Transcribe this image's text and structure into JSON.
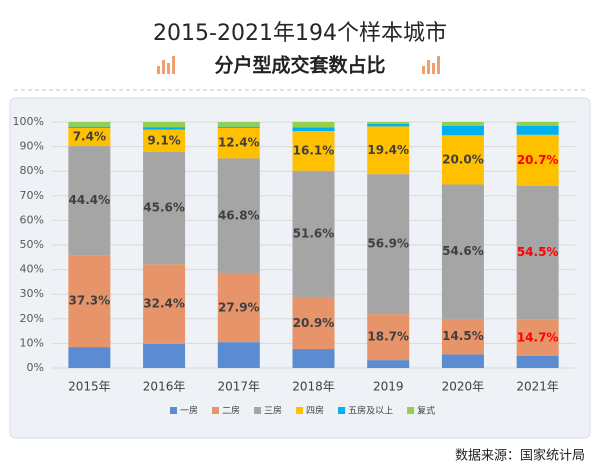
{
  "chart_data": {
    "type": "stacked_bar_100",
    "title": "2015-2021年194个样本城市",
    "subtitle": "分户型成交套数占比",
    "source": "数据来源：国家统计局",
    "categories": [
      "2015年",
      "2016年",
      "2017年",
      "2018年",
      "2019",
      "2020年",
      "2021年"
    ],
    "ylim": [
      0,
      100
    ],
    "yticks": [
      {
        "value": 0,
        "label": "0%"
      },
      {
        "value": 10,
        "label": "10%"
      },
      {
        "value": 20,
        "label": "20%"
      },
      {
        "value": 30,
        "label": "30%"
      },
      {
        "value": 40,
        "label": "40%"
      },
      {
        "value": 50,
        "label": "50%"
      },
      {
        "value": 60,
        "label": "60%"
      },
      {
        "value": 70,
        "label": "70%"
      },
      {
        "value": 80,
        "label": "80%"
      },
      {
        "value": 90,
        "label": "90%"
      },
      {
        "value": 100,
        "label": "100%"
      }
    ],
    "grid": true,
    "legend": "bottom",
    "series": [
      {
        "name": "一房",
        "color": "#5b8bd0",
        "values": [
          8.5,
          9.8,
          10.5,
          7.7,
          3.2,
          5.5,
          4.9
        ]
      },
      {
        "name": "二房",
        "color": "#e8946a",
        "values": [
          37.3,
          32.4,
          27.9,
          20.9,
          18.7,
          14.5,
          14.7
        ],
        "value_labels": [
          "37.3%",
          "32.4%",
          "27.9%",
          "20.9%",
          "18.7%",
          "14.5%",
          "14.7%"
        ],
        "value_label_colors": [
          "#404040",
          "#404040",
          "#404040",
          "#404040",
          "#404040",
          "#404040",
          "#ff0000"
        ]
      },
      {
        "name": "三房",
        "color": "#a5a5a5",
        "values": [
          44.4,
          45.6,
          46.8,
          51.6,
          56.9,
          54.6,
          54.5
        ],
        "value_labels": [
          "44.4%",
          "45.6%",
          "46.8%",
          "51.6%",
          "56.9%",
          "54.6%",
          "54.5%"
        ],
        "value_label_colors": [
          "#404040",
          "#404040",
          "#404040",
          "#404040",
          "#404040",
          "#404040",
          "#ff0000"
        ]
      },
      {
        "name": "四房",
        "color": "#ffc000",
        "values": [
          7.4,
          9.1,
          12.4,
          16.1,
          19.4,
          20.0,
          20.7
        ],
        "value_labels": [
          "7.4%",
          "9.1%",
          "12.4%",
          "16.1%",
          "19.4%",
          "20.0%",
          "20.7%"
        ],
        "value_label_colors": [
          "#404040",
          "#404040",
          "#404040",
          "#404040",
          "#404040",
          "#404040",
          "#ff0000"
        ]
      },
      {
        "name": "五房及以上",
        "color": "#00b0f0",
        "values": [
          0.5,
          1.0,
          0.5,
          1.5,
          1.0,
          3.9,
          3.7
        ]
      },
      {
        "name": "复式",
        "color": "#92d050",
        "values": [
          1.9,
          2.1,
          1.9,
          2.2,
          0.8,
          1.5,
          1.5
        ]
      }
    ]
  }
}
